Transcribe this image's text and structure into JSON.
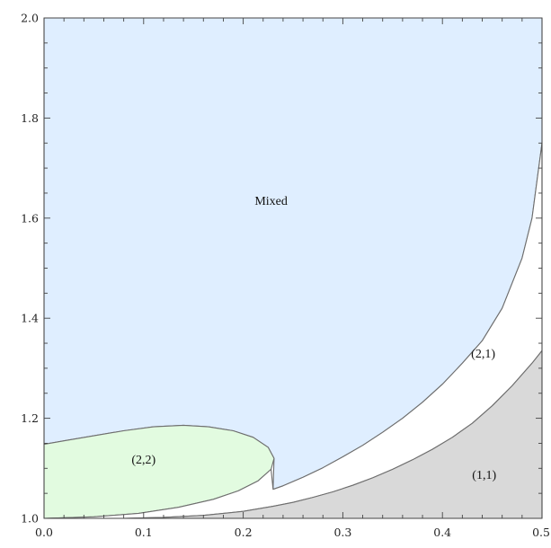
{
  "chart_data": {
    "type": "area",
    "title": "",
    "xlabel": "",
    "ylabel": "",
    "xlim": [
      0.0,
      0.5
    ],
    "ylim": [
      1.0,
      2.0
    ],
    "x_ticks": [
      "0.0",
      "0.1",
      "0.2",
      "0.3",
      "0.4",
      "0.5"
    ],
    "y_ticks": [
      "1.0",
      "1.2",
      "1.4",
      "1.6",
      "1.8",
      "2.0"
    ],
    "x_tick_values": [
      0.0,
      0.1,
      0.2,
      0.3,
      0.4,
      0.5
    ],
    "y_tick_values": [
      1.0,
      1.2,
      1.4,
      1.6,
      1.8,
      2.0
    ],
    "grid": false,
    "regions": [
      {
        "label": "Mixed",
        "color": "#dfeeff",
        "label_at": [
          0.228,
          1.632
        ],
        "boundary": [
          [
            0.0,
            1.148
          ],
          [
            0.0,
            2.0
          ],
          [
            0.5,
            2.0
          ],
          [
            0.5,
            1.75
          ],
          [
            0.49,
            1.6
          ],
          [
            0.48,
            1.52
          ],
          [
            0.46,
            1.42
          ],
          [
            0.44,
            1.355
          ],
          [
            0.42,
            1.31
          ],
          [
            0.4,
            1.268
          ],
          [
            0.38,
            1.232
          ],
          [
            0.36,
            1.2
          ],
          [
            0.34,
            1.172
          ],
          [
            0.32,
            1.146
          ],
          [
            0.3,
            1.123
          ],
          [
            0.28,
            1.101
          ],
          [
            0.26,
            1.082
          ],
          [
            0.24,
            1.065
          ],
          [
            0.23,
            1.058
          ],
          [
            0.231,
            1.12
          ],
          [
            0.225,
            1.142
          ],
          [
            0.21,
            1.162
          ],
          [
            0.19,
            1.175
          ],
          [
            0.165,
            1.183
          ],
          [
            0.14,
            1.186
          ],
          [
            0.11,
            1.183
          ],
          [
            0.08,
            1.175
          ],
          [
            0.05,
            1.165
          ],
          [
            0.02,
            1.155
          ],
          [
            0.0,
            1.148
          ]
        ]
      },
      {
        "label": "(2,2)",
        "color": "#e2fbe0",
        "label_at": [
          0.1,
          1.115
        ],
        "boundary": [
          [
            0.0,
            1.148
          ],
          [
            0.02,
            1.155
          ],
          [
            0.05,
            1.165
          ],
          [
            0.08,
            1.175
          ],
          [
            0.11,
            1.183
          ],
          [
            0.14,
            1.186
          ],
          [
            0.165,
            1.183
          ],
          [
            0.19,
            1.175
          ],
          [
            0.21,
            1.162
          ],
          [
            0.225,
            1.142
          ],
          [
            0.231,
            1.12
          ],
          [
            0.228,
            1.098
          ],
          [
            0.215,
            1.075
          ],
          [
            0.195,
            1.055
          ],
          [
            0.17,
            1.038
          ],
          [
            0.135,
            1.022
          ],
          [
            0.095,
            1.01
          ],
          [
            0.05,
            1.003
          ],
          [
            0.0,
            1.0
          ]
        ]
      },
      {
        "label": "(2,1)",
        "color": "#ffffff",
        "label_at": [
          0.441,
          1.327
        ],
        "boundary": [
          [
            0.0,
            1.0
          ],
          [
            0.05,
            1.003
          ],
          [
            0.095,
            1.01
          ],
          [
            0.135,
            1.022
          ],
          [
            0.17,
            1.038
          ],
          [
            0.195,
            1.055
          ],
          [
            0.215,
            1.075
          ],
          [
            0.228,
            1.098
          ],
          [
            0.23,
            1.058
          ],
          [
            0.24,
            1.065
          ],
          [
            0.26,
            1.082
          ],
          [
            0.28,
            1.101
          ],
          [
            0.3,
            1.123
          ],
          [
            0.32,
            1.146
          ],
          [
            0.34,
            1.172
          ],
          [
            0.36,
            1.2
          ],
          [
            0.38,
            1.232
          ],
          [
            0.4,
            1.268
          ],
          [
            0.42,
            1.31
          ],
          [
            0.44,
            1.355
          ],
          [
            0.46,
            1.42
          ],
          [
            0.48,
            1.52
          ],
          [
            0.49,
            1.6
          ],
          [
            0.5,
            1.75
          ],
          [
            0.5,
            1.335
          ],
          [
            0.49,
            1.31
          ],
          [
            0.47,
            1.265
          ],
          [
            0.45,
            1.225
          ],
          [
            0.43,
            1.19
          ],
          [
            0.41,
            1.162
          ],
          [
            0.39,
            1.138
          ],
          [
            0.37,
            1.117
          ],
          [
            0.35,
            1.098
          ],
          [
            0.33,
            1.081
          ],
          [
            0.31,
            1.066
          ],
          [
            0.29,
            1.053
          ],
          [
            0.27,
            1.042
          ],
          [
            0.25,
            1.032
          ],
          [
            0.23,
            1.024
          ],
          [
            0.2,
            1.014
          ],
          [
            0.16,
            1.006
          ],
          [
            0.12,
            1.002
          ],
          [
            0.08,
            1.0
          ],
          [
            0.0,
            1.0
          ]
        ]
      },
      {
        "label": "(1,1)",
        "color": "#d9d9d9",
        "label_at": [
          0.442,
          1.085
        ],
        "boundary": [
          [
            0.0,
            1.0
          ],
          [
            0.08,
            1.0
          ],
          [
            0.12,
            1.002
          ],
          [
            0.16,
            1.006
          ],
          [
            0.2,
            1.014
          ],
          [
            0.23,
            1.024
          ],
          [
            0.25,
            1.032
          ],
          [
            0.27,
            1.042
          ],
          [
            0.29,
            1.053
          ],
          [
            0.31,
            1.066
          ],
          [
            0.33,
            1.081
          ],
          [
            0.35,
            1.098
          ],
          [
            0.37,
            1.117
          ],
          [
            0.39,
            1.138
          ],
          [
            0.41,
            1.162
          ],
          [
            0.43,
            1.19
          ],
          [
            0.45,
            1.225
          ],
          [
            0.47,
            1.265
          ],
          [
            0.49,
            1.31
          ],
          [
            0.5,
            1.335
          ],
          [
            0.5,
            1.0
          ],
          [
            0.0,
            1.0
          ]
        ]
      }
    ]
  },
  "colors": {
    "frame": "#444444",
    "boundary": "#6e6e6e"
  }
}
